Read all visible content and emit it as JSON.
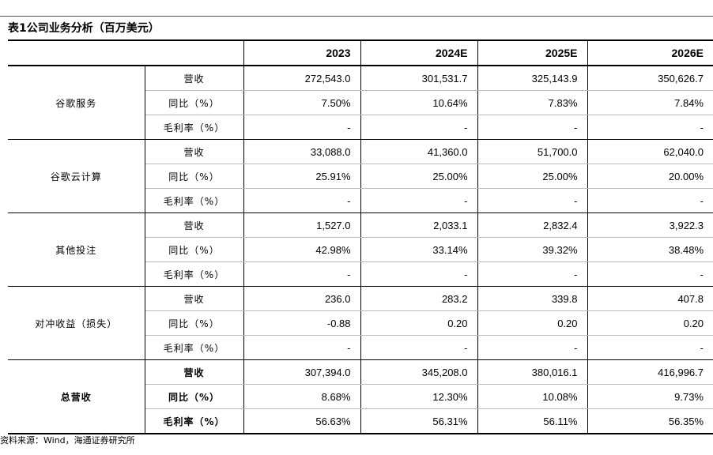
{
  "title": "表1公司业务分析（百万美元）",
  "columns": [
    "2023",
    "2024E",
    "2025E",
    "2026E"
  ],
  "segments": [
    {
      "name": "谷歌服务",
      "rows": [
        {
          "metric": "营收",
          "values": [
            "272,543.0",
            "301,531.7",
            "325,143.9",
            "350,626.7"
          ]
        },
        {
          "metric": "同比（%）",
          "values": [
            "7.50%",
            "10.64%",
            "7.83%",
            "7.84%"
          ]
        },
        {
          "metric": "毛利率（%）",
          "values": [
            "-",
            "-",
            "-",
            "-"
          ]
        }
      ]
    },
    {
      "name": "谷歌云计算",
      "rows": [
        {
          "metric": "营收",
          "values": [
            "33,088.0",
            "41,360.0",
            "51,700.0",
            "62,040.0"
          ]
        },
        {
          "metric": "同比（%）",
          "values": [
            "25.91%",
            "25.00%",
            "25.00%",
            "20.00%"
          ]
        },
        {
          "metric": "毛利率（%）",
          "values": [
            "-",
            "-",
            "-",
            "-"
          ]
        }
      ]
    },
    {
      "name": "其他投注",
      "rows": [
        {
          "metric": "营收",
          "values": [
            "1,527.0",
            "2,033.1",
            "2,832.4",
            "3,922.3"
          ]
        },
        {
          "metric": "同比（%）",
          "values": [
            "42.98%",
            "33.14%",
            "39.32%",
            "38.48%"
          ]
        },
        {
          "metric": "毛利率（%）",
          "values": [
            "-",
            "-",
            "-",
            "-"
          ]
        }
      ]
    },
    {
      "name": "对冲收益（损失）",
      "rows": [
        {
          "metric": "营收",
          "values": [
            "236.0",
            "283.2",
            "339.8",
            "407.8"
          ]
        },
        {
          "metric": "同比（%）",
          "values": [
            "-0.88",
            "0.20",
            "0.20",
            "0.20"
          ]
        },
        {
          "metric": "毛利率（%）",
          "values": [
            "-",
            "-",
            "-",
            "-"
          ]
        }
      ]
    },
    {
      "name": "总营收",
      "rows": [
        {
          "metric": "营收",
          "values": [
            "307,394.0",
            "345,208.0",
            "380,016.1",
            "416,996.7"
          ]
        },
        {
          "metric": "同比（%）",
          "values": [
            "8.68%",
            "12.30%",
            "10.08%",
            "9.73%"
          ]
        },
        {
          "metric": "毛利率（%）",
          "values": [
            "56.63%",
            "56.31%",
            "56.11%",
            "56.35%"
          ]
        }
      ]
    }
  ],
  "source": "资料来源：Wind，海通证券研究所"
}
